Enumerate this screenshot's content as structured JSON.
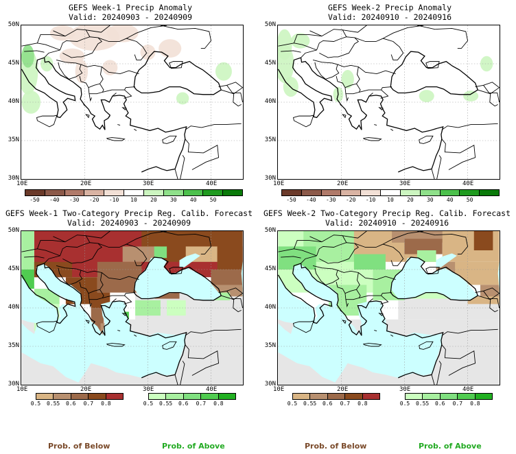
{
  "panels": [
    {
      "title": "GEFS Week-1 Precip Anomaly",
      "valid": "Valid: 20240903 - 20240909"
    },
    {
      "title": "GEFS Week-2 Precip Anomaly",
      "valid": "Valid: 20240910 - 20240916"
    },
    {
      "title": "GEFS Week-1 Two-Category Precip Reg. Calib. Forecast",
      "valid": "Valid: 20240903 - 20240909"
    },
    {
      "title": "GEFS Week-2 Two-Category Precip Reg. Calib. Forecast",
      "valid": "Valid: 20240910 - 20240916"
    }
  ],
  "axes": {
    "lat_labels": [
      "50N",
      "45N",
      "40N",
      "35N",
      "30N"
    ],
    "lon_labels": [
      "10E",
      "20E",
      "30E",
      "40E"
    ]
  },
  "anomaly_colorbar": {
    "ticks": [
      "-50",
      "-40",
      "-30",
      "-20",
      "-10",
      "10",
      "20",
      "30",
      "40",
      "50"
    ],
    "colors": [
      "#6b3a2a",
      "#8c5a4a",
      "#b07a6a",
      "#d9b3a3",
      "#f2e0d6",
      "#ffffff",
      "#ccf5c0",
      "#8fe08a",
      "#4cc04c",
      "#1f9a1f",
      "#0a7a0a"
    ]
  },
  "prob_below_colorbar": {
    "ticks": [
      "0.5",
      "0.55",
      "0.6",
      "0.7",
      "0.8"
    ],
    "colors": [
      "#d9b585",
      "#b89070",
      "#9c6a4a",
      "#8a4a1e",
      "#a83030"
    ],
    "label": "Prob. of Below"
  },
  "prob_above_colorbar": {
    "ticks": [
      "0.5",
      "0.55",
      "0.6",
      "0.7",
      "0.8"
    ],
    "colors": [
      "#ccffc0",
      "#a8f0a0",
      "#80e080",
      "#50cc50",
      "#22b022"
    ],
    "label": "Prob. of Above"
  },
  "colors": {
    "sea": "#ccffff",
    "land_neutral": "#e6e6e6",
    "prob_below_label": "#7a4a2a",
    "prob_above_label": "#22aa22"
  }
}
